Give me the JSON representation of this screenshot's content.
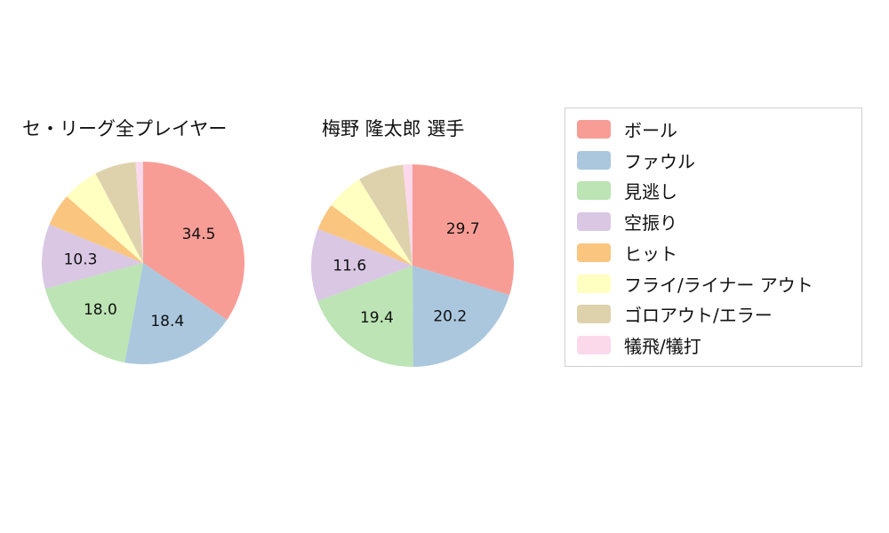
{
  "page": {
    "background": "#ffffff"
  },
  "charts": {
    "left_title": "セ・リーグ全プレイヤー",
    "right_title": "梅野 隆太郎 選手"
  },
  "legend": {
    "items": [
      {
        "label": "ボール",
        "color": "#f89d96"
      },
      {
        "label": "ファウル",
        "color": "#aac7de"
      },
      {
        "label": "見逃し",
        "color": "#bce4b4"
      },
      {
        "label": "空振り",
        "color": "#d9c7e4"
      },
      {
        "label": "ヒット",
        "color": "#fac57f"
      },
      {
        "label": "フライ/ライナー アウト",
        "color": "#ffffc2"
      },
      {
        "label": "ゴロアウト/エラー",
        "color": "#ded2ad"
      },
      {
        "label": "犠飛/犠打",
        "color": "#fcd8eb"
      }
    ]
  },
  "chart_data": [
    {
      "type": "pie",
      "title": "セ・リーグ全プレイヤー",
      "categories": [
        "ボール",
        "ファウル",
        "見逃し",
        "空振り",
        "ヒット",
        "フライ/ライナー アウト",
        "ゴロアウト/エラー",
        "犠飛/犠打"
      ],
      "values": [
        34.5,
        18.4,
        18.0,
        10.3,
        5.2,
        5.8,
        6.6,
        1.2
      ],
      "labels_shown": [
        "34.5",
        "18.4",
        "18.0",
        "10.3",
        "",
        "",
        "",
        ""
      ],
      "colors": [
        "#f89d96",
        "#aac7de",
        "#bce4b4",
        "#d9c7e4",
        "#fac57f",
        "#ffffc2",
        "#ded2ad",
        "#fcd8eb"
      ],
      "start_angle": "top",
      "direction": "clockwise",
      "legend_position": "right"
    },
    {
      "type": "pie",
      "title": "梅野 隆太郎 選手",
      "categories": [
        "ボール",
        "ファウル",
        "見逃し",
        "空振り",
        "ヒット",
        "フライ/ライナー アウト",
        "ゴロアウト/エラー",
        "犠飛/犠打"
      ],
      "values": [
        29.7,
        20.2,
        19.4,
        11.6,
        4.3,
        6.0,
        7.3,
        1.5
      ],
      "labels_shown": [
        "29.7",
        "20.2",
        "19.4",
        "11.6",
        "",
        "",
        "",
        ""
      ],
      "colors": [
        "#f89d96",
        "#aac7de",
        "#bce4b4",
        "#d9c7e4",
        "#fac57f",
        "#ffffc2",
        "#ded2ad",
        "#fcd8eb"
      ],
      "start_angle": "top",
      "direction": "clockwise",
      "legend_position": "right"
    }
  ]
}
